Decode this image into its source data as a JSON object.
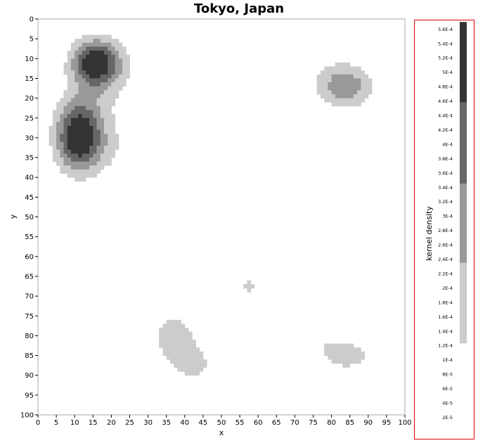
{
  "chart_data": {
    "type": "heatmap",
    "title": "Tokyo, Japan",
    "xlabel": "x",
    "ylabel": "y",
    "xlim": [
      0,
      100
    ],
    "ylim": [
      100,
      0
    ],
    "x_ticks": [
      "0",
      "5",
      "10",
      "15",
      "20",
      "25",
      "30",
      "35",
      "40",
      "45",
      "50",
      "55",
      "60",
      "65",
      "70",
      "75",
      "80",
      "85",
      "90",
      "95",
      "100"
    ],
    "y_ticks": [
      "0",
      "5",
      "10",
      "15",
      "20",
      "25",
      "30",
      "35",
      "40",
      "45",
      "50",
      "55",
      "60",
      "65",
      "70",
      "75",
      "80",
      "85",
      "90",
      "95",
      "100"
    ],
    "colorbar": {
      "label": "kernel density",
      "ticks": [
        "5.6E-4",
        "5.4E-4",
        "5.2E-4",
        "5E-4",
        "4.8E-4",
        "4.6E-4",
        "4.4E-4",
        "4.2E-4",
        "4E-4",
        "3.8E-4",
        "3.6E-4",
        "3.4E-4",
        "3.2E-4",
        "3E-4",
        "2.8E-4",
        "2.6E-4",
        "2.4E-4",
        "2.2E-4",
        "2E-4",
        "1.8E-4",
        "1.6E-4",
        "1.4E-4",
        "1.2E-4",
        "1E-4",
        "8E-5",
        "6E-5",
        "4E-5",
        "2E-5"
      ],
      "levels": [
        {
          "min": 0.000123,
          "max": 0.000235,
          "color": "#cccccc"
        },
        {
          "min": 0.000235,
          "max": 0.000345,
          "color": "#999999"
        },
        {
          "min": 0.000345,
          "max": 0.000458,
          "color": "#666666"
        },
        {
          "min": 0.000458,
          "max": 0.00057,
          "color": "#333333"
        }
      ]
    },
    "density_peaks": [
      {
        "x": 11,
        "y": 30,
        "density": 0.00056
      },
      {
        "x": 15,
        "y": 11,
        "density": 0.0005
      },
      {
        "x": 84,
        "y": 17,
        "density": 0.0003
      },
      {
        "x": 38,
        "y": 83,
        "density": 0.00018
      },
      {
        "x": 84,
        "y": 84,
        "density": 0.00016
      },
      {
        "x": 57,
        "y": 68,
        "density": 0.00014
      }
    ]
  },
  "colors": {
    "frame": "#aaaaaa",
    "legend_border": "#dd0000",
    "background": "#ffffff"
  }
}
